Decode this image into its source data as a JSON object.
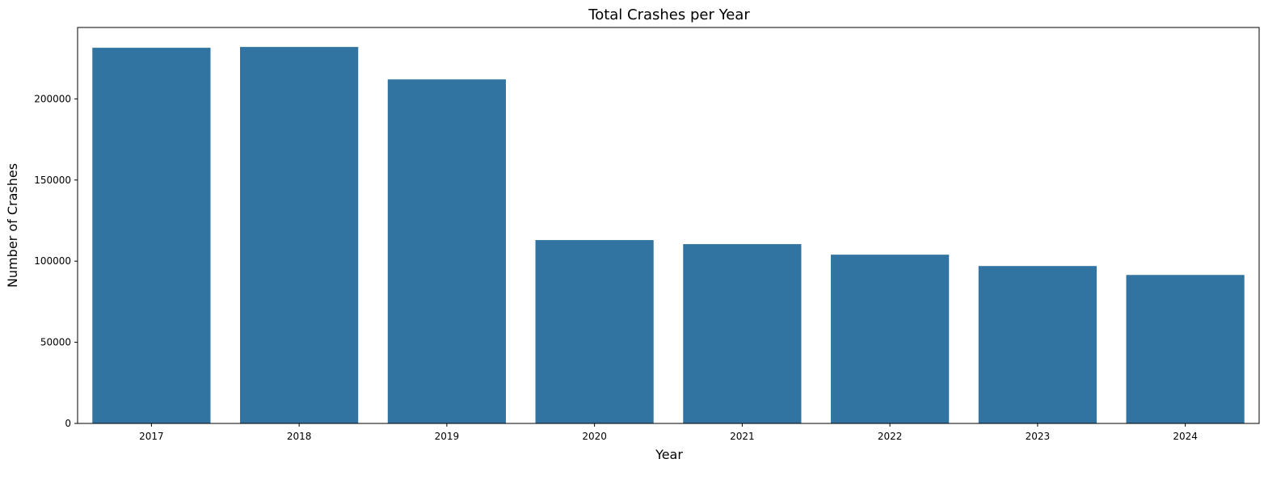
{
  "chart_data": {
    "type": "bar",
    "title": "Total Crashes per Year",
    "xlabel": "Year",
    "ylabel": "Number of Crashes",
    "categories": [
      "2017",
      "2018",
      "2019",
      "2020",
      "2021",
      "2022",
      "2023",
      "2024"
    ],
    "values": [
      231500,
      232000,
      212000,
      113000,
      110500,
      104000,
      97000,
      91500
    ],
    "ylim": [
      0,
      244000
    ],
    "yticks": [
      0,
      50000,
      100000,
      150000,
      200000
    ],
    "ytick_labels": [
      "0",
      "50000",
      "100000",
      "150000",
      "200000"
    ],
    "bar_color": "#3274a1",
    "grid": false,
    "legend": "none"
  }
}
